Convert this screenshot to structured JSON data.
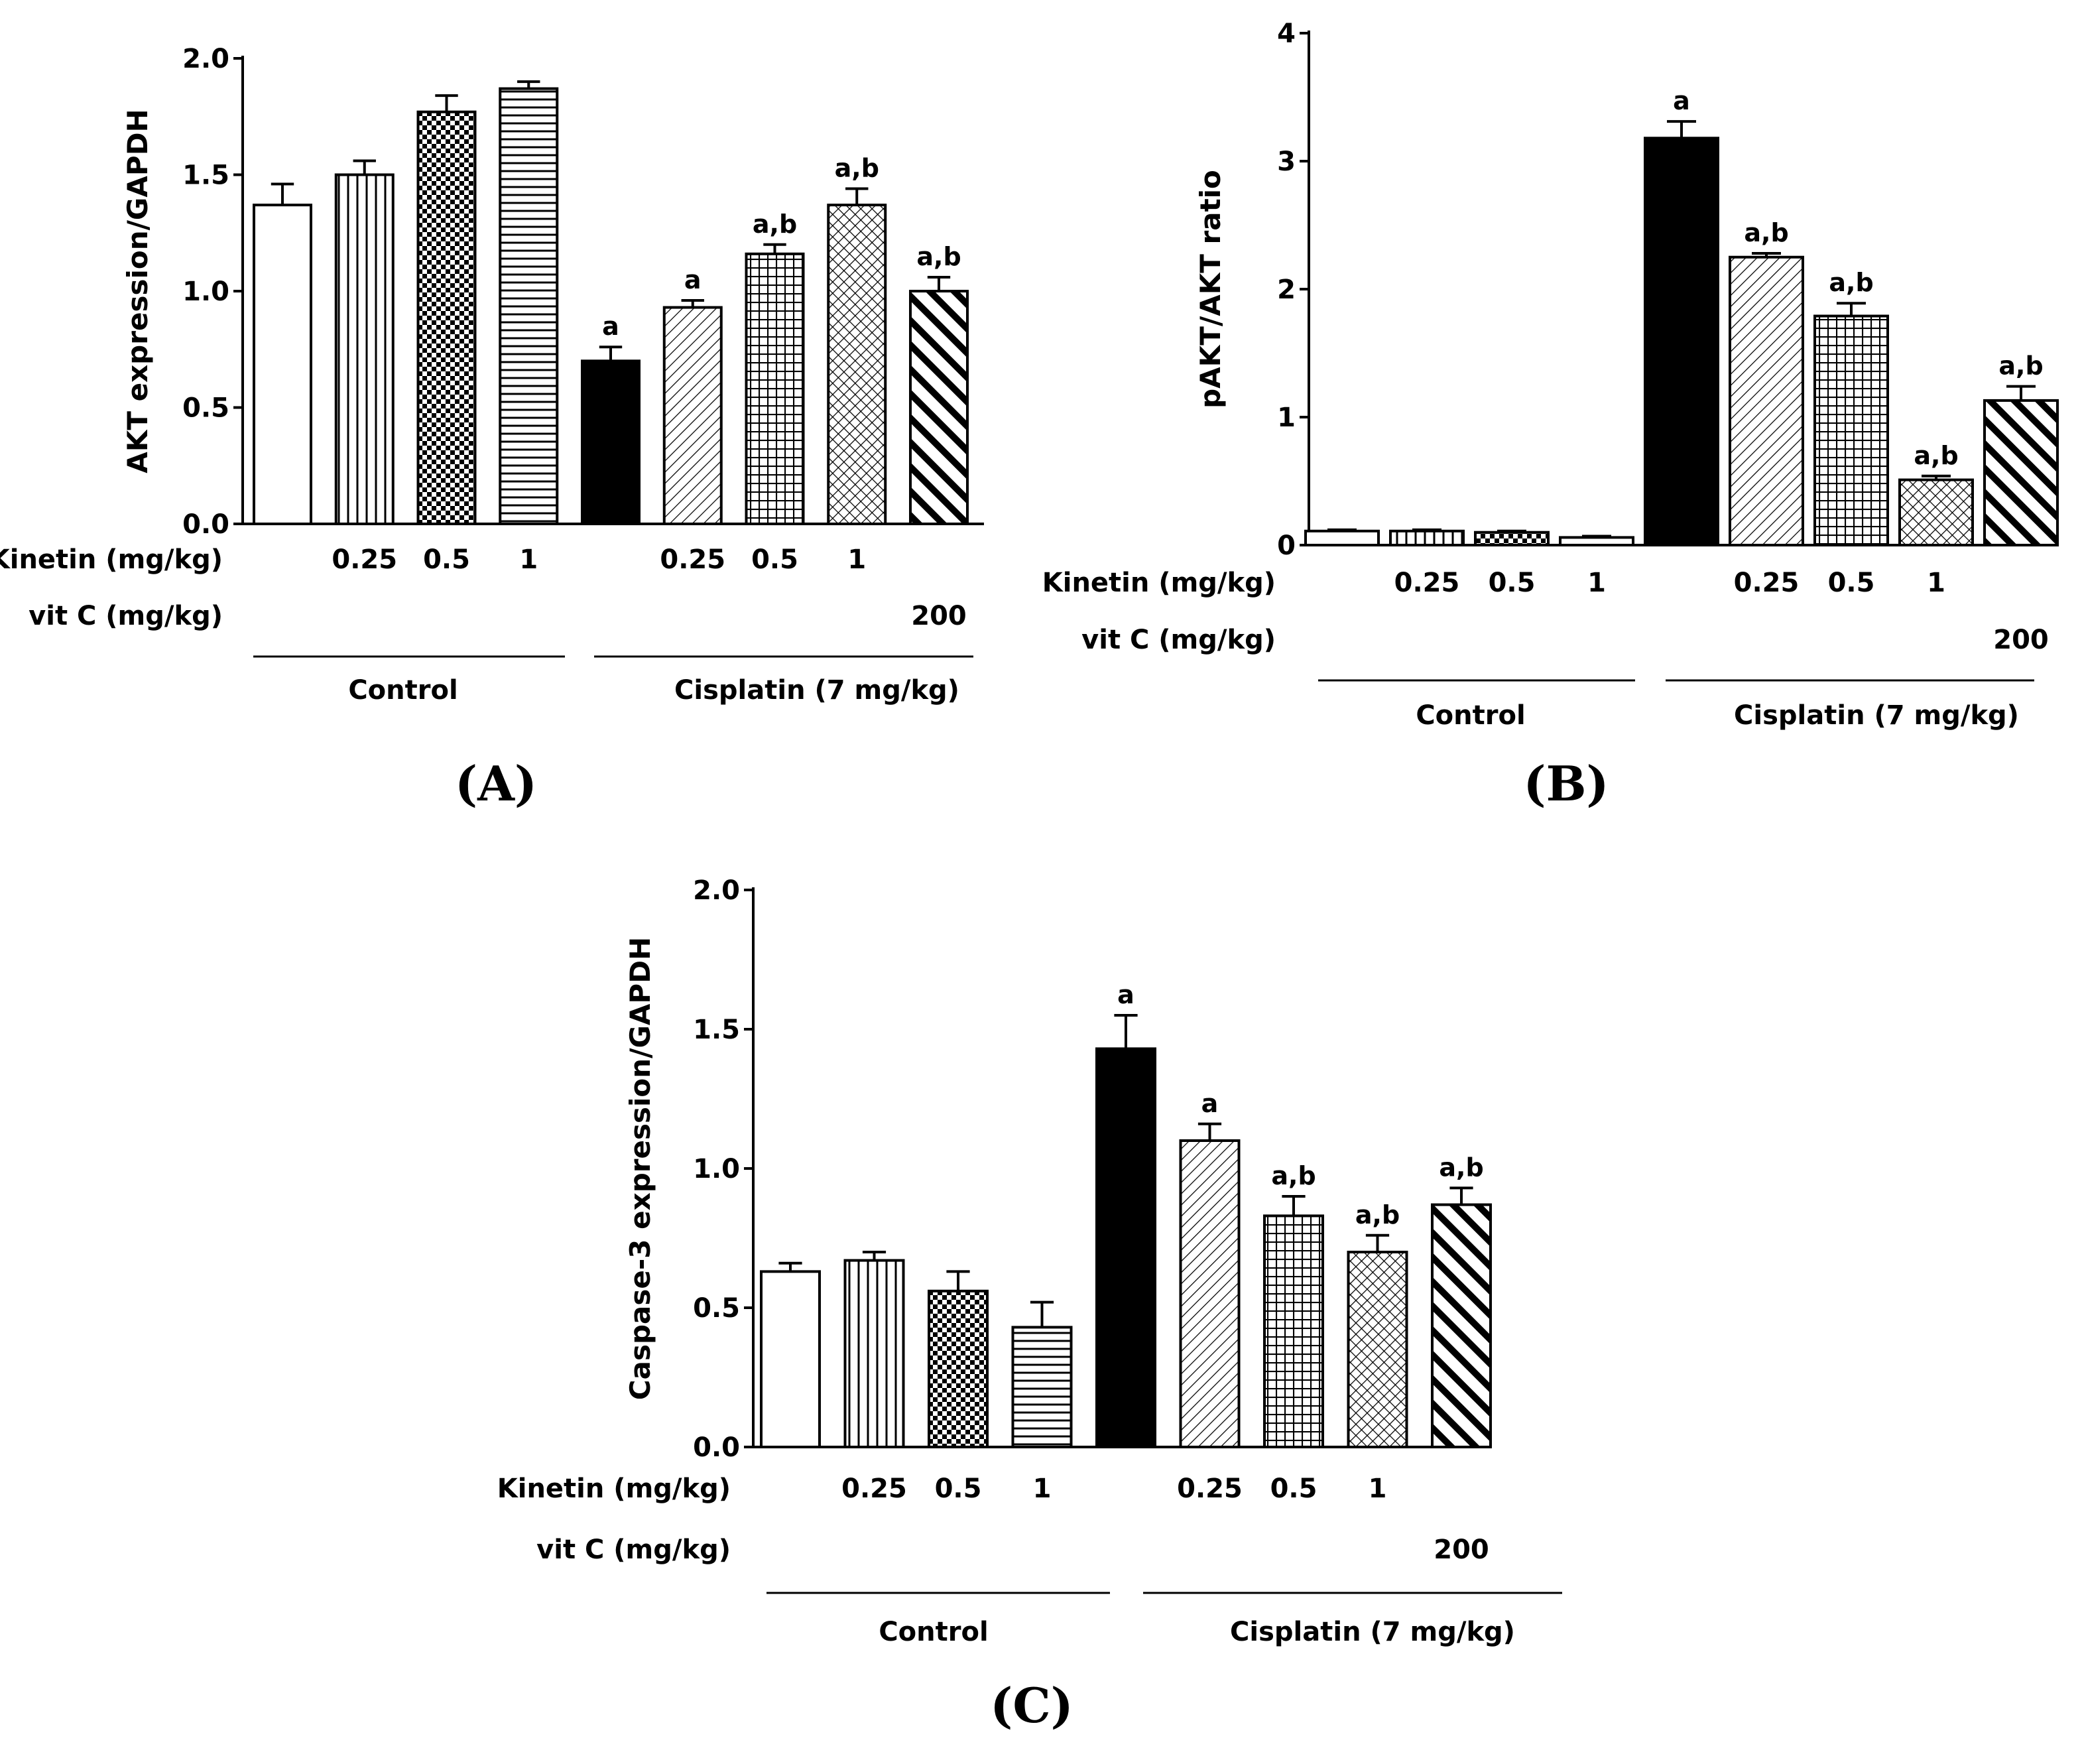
{
  "rows": {
    "kinetin_label": "Kinetin (mg/kg)",
    "vitc_label": "vit C (mg/kg)",
    "kinetin_doses": [
      "",
      "0.25",
      "0.5",
      "1",
      "",
      "0.25",
      "0.5",
      "1",
      ""
    ],
    "vitc_doses": [
      "",
      "",
      "",
      "",
      "",
      "",
      "",
      "",
      "200"
    ],
    "control_label": "Control",
    "cisplatin_label": "Cisplatin (7 mg/kg)"
  },
  "colors": {
    "ink": "#000000",
    "background": "#ffffff"
  },
  "chart_data": [
    {
      "panel": "(A)",
      "type": "bar",
      "ylabel": "AKT expression/GAPDH",
      "ylim": [
        0,
        2.0
      ],
      "yticks": [
        0.0,
        0.5,
        1.0,
        1.5,
        2.0
      ],
      "ytick_labels": [
        "0.0",
        "0.5",
        "1.0",
        "1.5",
        "2.0"
      ],
      "categories": [
        "Control",
        "Kinetin 0.25",
        "Kinetin 0.5",
        "Kinetin 1",
        "Cisplatin",
        "Cisplatin + Kinetin 0.25",
        "Cisplatin + Kinetin 0.5",
        "Cisplatin + Kinetin 1",
        "Cisplatin + vit C 200"
      ],
      "values": [
        1.37,
        1.5,
        1.77,
        1.87,
        0.7,
        0.93,
        1.16,
        1.37,
        1.0
      ],
      "errors": [
        0.09,
        0.06,
        0.07,
        0.03,
        0.06,
        0.03,
        0.04,
        0.07,
        0.06
      ],
      "significance": [
        "",
        "",
        "",
        "",
        "a",
        "a",
        "a,b",
        "a,b",
        "a,b"
      ]
    },
    {
      "panel": "(B)",
      "type": "bar",
      "ylabel": "pAKT/AKT ratio",
      "ylim": [
        0,
        4
      ],
      "yticks": [
        0,
        1,
        2,
        3,
        4
      ],
      "ytick_labels": [
        "0",
        "1",
        "2",
        "3",
        "4"
      ],
      "categories": [
        "Control",
        "Kinetin 0.25",
        "Kinetin 0.5",
        "Kinetin 1",
        "Cisplatin",
        "Cisplatin + Kinetin 0.25",
        "Cisplatin + Kinetin 0.5",
        "Cisplatin + Kinetin 1",
        "Cisplatin + vit C 200"
      ],
      "values": [
        0.11,
        0.11,
        0.1,
        0.06,
        3.18,
        2.25,
        1.79,
        0.51,
        1.13
      ],
      "errors": [
        0.01,
        0.01,
        0.01,
        0.01,
        0.13,
        0.03,
        0.1,
        0.03,
        0.11
      ],
      "significance": [
        "",
        "",
        "",
        "",
        "a",
        "a,b",
        "a,b",
        "a,b",
        "a,b"
      ]
    },
    {
      "panel": "(C)",
      "type": "bar",
      "ylabel": "Caspase-3 expression/GAPDH",
      "ylim": [
        0,
        2.0
      ],
      "yticks": [
        0.0,
        0.5,
        1.0,
        1.5,
        2.0
      ],
      "ytick_labels": [
        "0.0",
        "0.5",
        "1.0",
        "1.5",
        "2.0"
      ],
      "categories": [
        "Control",
        "Kinetin 0.25",
        "Kinetin 0.5",
        "Kinetin 1",
        "Cisplatin",
        "Cisplatin + Kinetin 0.25",
        "Cisplatin + Kinetin 0.5",
        "Cisplatin + Kinetin 1",
        "Cisplatin + vit C 200"
      ],
      "values": [
        0.63,
        0.67,
        0.56,
        0.43,
        1.43,
        1.1,
        0.83,
        0.7,
        0.87
      ],
      "errors": [
        0.03,
        0.03,
        0.07,
        0.09,
        0.12,
        0.06,
        0.07,
        0.06,
        0.06
      ],
      "significance": [
        "",
        "",
        "",
        "",
        "a",
        "a",
        "a,b",
        "a,b",
        "a,b"
      ]
    }
  ]
}
